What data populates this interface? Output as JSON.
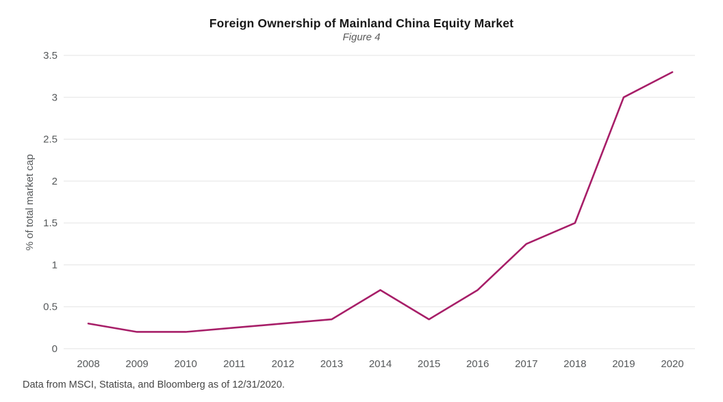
{
  "page": {
    "title": "Foreign Ownership of Mainland China Equity Market",
    "subtitle": "Figure 4",
    "footnote": "Data from MSCI, Statista, and Bloomberg as of 12/31/2020."
  },
  "colors": {
    "line": "#a71e68",
    "grid": "#e3e3e3",
    "axis_text": "#55585a",
    "axis_title_text": "#55585a"
  },
  "chart_data": {
    "type": "line",
    "title": "Foreign Ownership of Mainland China Equity Market",
    "subtitle": "Figure 4",
    "categories": [
      "2008",
      "2009",
      "2010",
      "2011",
      "2012",
      "2013",
      "2014",
      "2015",
      "2016",
      "2017",
      "2018",
      "2019",
      "2020"
    ],
    "values": [
      0.3,
      0.2,
      0.2,
      0.25,
      0.3,
      0.35,
      0.7,
      0.35,
      0.7,
      1.25,
      1.5,
      3.0,
      3.3
    ],
    "xlabel": "",
    "ylabel": "% of total market cap",
    "ylim": [
      0,
      3.5
    ],
    "yticks": [
      0,
      0.5,
      1,
      1.5,
      2,
      2.5,
      3,
      3.5
    ],
    "grid": "horizontal",
    "legend": "none",
    "source_note": "Data from MSCI, Statista, and Bloomberg as of 12/31/2020."
  }
}
